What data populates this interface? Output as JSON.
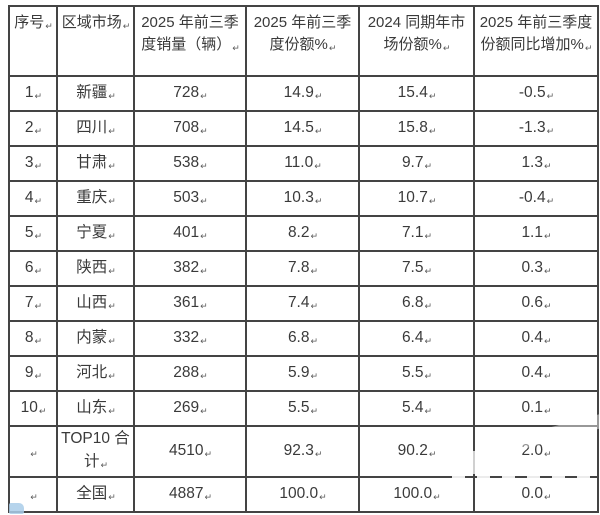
{
  "paragraph_mark": "↵",
  "colors": {
    "border": "#444444",
    "text": "#3a3a3a",
    "background": "#ffffff",
    "watermark_blue": "#a9cde9"
  },
  "table": {
    "headers": [
      "序号",
      "区域市场",
      "2025 年前三季度销量（辆）",
      "2025 年前三季度份额%",
      "2024 同期年市场份额%",
      "2025 年前三季度份额同比增加%"
    ],
    "rows": [
      [
        "1",
        "新疆",
        "728",
        "14.9",
        "15.4",
        "-0.5"
      ],
      [
        "2",
        "四川",
        "708",
        "14.5",
        "15.8",
        "-1.3"
      ],
      [
        "3",
        "甘肃",
        "538",
        "11.0",
        "9.7",
        "1.3"
      ],
      [
        "4",
        "重庆",
        "503",
        "10.3",
        "10.7",
        "-0.4"
      ],
      [
        "5",
        "宁夏",
        "401",
        "8.2",
        "7.1",
        "1.1"
      ],
      [
        "6",
        "陕西",
        "382",
        "7.8",
        "7.5",
        "0.3"
      ],
      [
        "7",
        "山西",
        "361",
        "7.4",
        "6.8",
        "0.6"
      ],
      [
        "8",
        "内蒙",
        "332",
        "6.8",
        "6.4",
        "0.4"
      ],
      [
        "9",
        "河北",
        "288",
        "5.9",
        "5.5",
        "0.4"
      ],
      [
        "10",
        "山东",
        "269",
        "5.5",
        "5.4",
        "0.1"
      ],
      [
        "",
        "TOP10 合计",
        "4510",
        "92.3",
        "90.2",
        "2.0"
      ],
      [
        "",
        "全国",
        "4887",
        "100.0",
        "100.0",
        "0.0"
      ]
    ]
  }
}
